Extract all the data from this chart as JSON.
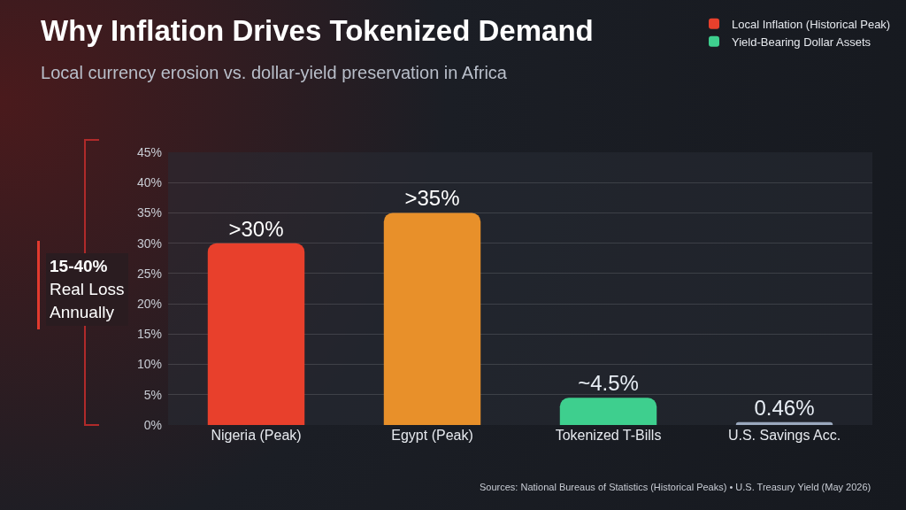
{
  "chart_data": {
    "type": "bar",
    "title": "Why Inflation Drives Tokenized Demand",
    "subtitle": "Local currency erosion vs. dollar-yield preservation in Africa",
    "categories": [
      "Nigeria (Peak)",
      "Egypt (Peak)",
      "Tokenized T-Bills",
      "U.S. Savings Acc."
    ],
    "series": [
      {
        "name": "Local Inflation (Historical Peak)",
        "color": "#e8402c",
        "colors": [
          "#e8402c",
          "#e8902a",
          null,
          null
        ],
        "values": [
          30,
          35,
          null,
          null
        ],
        "value_labels": [
          ">30%",
          ">35%",
          null,
          null
        ]
      },
      {
        "name": "Yield-Bearing Dollar Assets",
        "color": "#3ecf8e",
        "colors": [
          null,
          null,
          "#3ecf8e",
          "#9aa8bd"
        ],
        "values": [
          null,
          null,
          4.5,
          0.46
        ],
        "value_labels": [
          null,
          null,
          "~4.5%",
          "0.46%"
        ]
      }
    ],
    "ylim": [
      0,
      45
    ],
    "yticks": [
      {
        "value": 0,
        "label": "0%"
      },
      {
        "value": 5,
        "label": "5%"
      },
      {
        "value": 10,
        "label": "10%"
      },
      {
        "value": 15,
        "label": "15%"
      },
      {
        "value": 20,
        "label": "20%"
      },
      {
        "value": 25,
        "label": "25%"
      },
      {
        "value": 30,
        "label": "30%"
      },
      {
        "value": 35,
        "label": "35%"
      },
      {
        "value": 40,
        "label": "40%"
      },
      {
        "value": 45,
        "label": "45%"
      }
    ],
    "grid": "y",
    "legend": "top right",
    "annotations": [
      "15-40%\nReal Loss\nAnnually",
      "Sources: National Bureaus of Statistics (Historical Peaks) • U.S. Treasury Yield (May 2026)"
    ]
  }
}
